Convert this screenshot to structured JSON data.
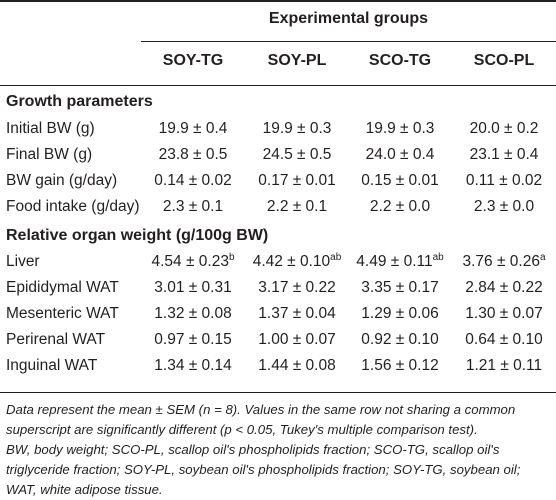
{
  "header": {
    "group_title": "Experimental groups",
    "columns": [
      "SOY-TG",
      "SOY-PL",
      "SCO-TG",
      "SCO-PL"
    ]
  },
  "sections": [
    {
      "title": "Growth parameters",
      "rows": [
        {
          "label": "Initial BW (g)",
          "values": [
            "19.9 ± 0.4",
            "19.9 ± 0.3",
            "19.9 ± 0.3",
            "20.0 ± 0.2"
          ],
          "sups": [
            "",
            "",
            "",
            ""
          ]
        },
        {
          "label": "Final BW (g)",
          "values": [
            "23.8 ± 0.5",
            "24.5 ± 0.5",
            "24.0 ± 0.4",
            "23.1 ± 0.4"
          ],
          "sups": [
            "",
            "",
            "",
            ""
          ]
        },
        {
          "label": "BW gain (g/day)",
          "values": [
            "0.14 ± 0.02",
            "0.17 ± 0.01",
            "0.15 ± 0.01",
            "0.11 ± 0.02"
          ],
          "sups": [
            "",
            "",
            "",
            ""
          ]
        },
        {
          "label": "Food intake (g/day)",
          "values": [
            "2.3 ± 0.1",
            "2.2 ± 0.1",
            "2.2 ± 0.0",
            "2.3 ± 0.0"
          ],
          "sups": [
            "",
            "",
            "",
            ""
          ]
        }
      ]
    },
    {
      "title": "Relative organ weight (g/100g BW)",
      "rows": [
        {
          "label": "Liver",
          "values": [
            "4.54 ± 0.23",
            "4.42 ± 0.10",
            "4.49 ± 0.11",
            "3.76 ± 0.26"
          ],
          "sups": [
            "b",
            "ab",
            "ab",
            "a"
          ]
        },
        {
          "label": "Epididymal WAT",
          "values": [
            "3.01 ± 0.31",
            "3.17 ± 0.22",
            "3.35 ± 0.17",
            "2.84 ± 0.22"
          ],
          "sups": [
            "",
            "",
            "",
            ""
          ]
        },
        {
          "label": "Mesenteric WAT",
          "values": [
            "1.32 ± 0.08",
            "1.37 ± 0.04",
            "1.29 ± 0.06",
            "1.30 ± 0.07"
          ],
          "sups": [
            "",
            "",
            "",
            ""
          ]
        },
        {
          "label": "Perirenal WAT",
          "values": [
            "0.97 ± 0.15",
            "1.00 ± 0.07",
            "0.92 ± 0.10",
            "0.64 ± 0.10"
          ],
          "sups": [
            "",
            "",
            "",
            ""
          ]
        },
        {
          "label": "Inguinal WAT",
          "values": [
            "1.34 ± 0.14",
            "1.44 ± 0.08",
            "1.56 ± 0.12",
            "1.21 ± 0.11"
          ],
          "sups": [
            "",
            "",
            "",
            ""
          ]
        }
      ]
    }
  ],
  "footnotes": {
    "note1": "Data represent the mean ± SEM (n = 8). Values in the same row not sharing a common superscript are significantly different (p < 0.05, Tukey's multiple comparison test).",
    "note2": "BW, body weight; SCO-PL, scallop oil's phospholipids fraction; SCO-TG, scallop oil's triglyceride fraction; SOY-PL, soybean oil's phospholipids fraction; SOY-TG, soybean oil; WAT, white adipose tissue."
  }
}
